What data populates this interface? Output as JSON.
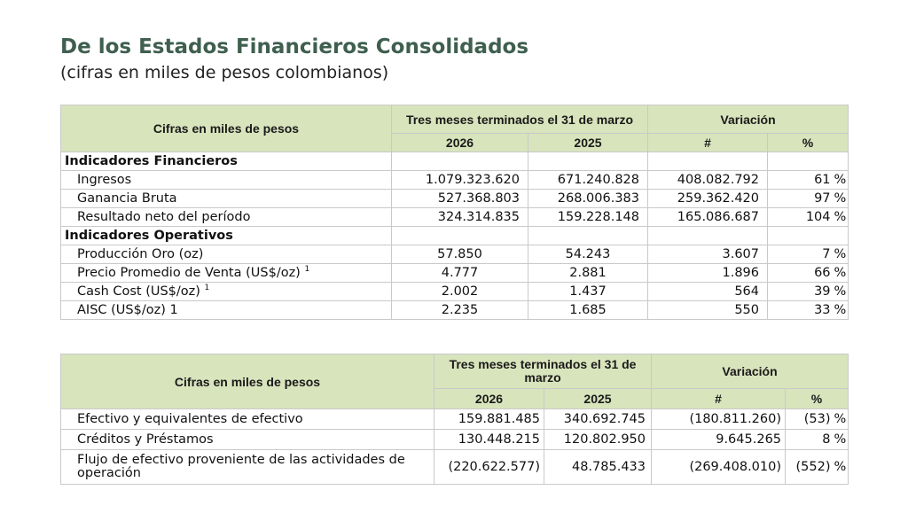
{
  "title": "De los Estados Financieros Consolidados",
  "subtitle": "(cifras en miles de pesos colombianos)",
  "table1": {
    "header_label": "Cifras en miles de pesos",
    "period_header": "Tres meses terminados el 31 de marzo",
    "variation_header": "Variación",
    "year1": "2026",
    "year2": "2025",
    "num_header": "#",
    "pct_header": "%",
    "section_financial": "Indicadores Financieros",
    "section_operational": "Indicadores Operativos",
    "rows_financial": [
      {
        "label": "Ingresos",
        "v2026": "1.079.323.620",
        "v2025": "671.240.828",
        "var": "408.082.792",
        "pct": "61",
        "pct_sign": "%"
      },
      {
        "label": "Ganancia Bruta",
        "v2026": "527.368.803",
        "v2025": "268.006.383",
        "var": "259.362.420",
        "pct": "97",
        "pct_sign": "%"
      },
      {
        "label": "Resultado neto del período",
        "v2026": "324.314.835",
        "v2025": "159.228.148",
        "var": "165.086.687",
        "pct": "104",
        "pct_sign": "%"
      }
    ],
    "rows_operational": [
      {
        "label": "Producción Oro (oz)",
        "sup": "",
        "v2026": "57.850",
        "v2025": "54.243",
        "var": "3.607",
        "pct": "7",
        "pct_sign": "%"
      },
      {
        "label": "Precio Promedio de Venta (US$/oz)",
        "sup": "1",
        "v2026": "4.777",
        "v2025": "2.881",
        "var": "1.896",
        "pct": "66",
        "pct_sign": "%"
      },
      {
        "label": "Cash Cost (US$/oz)",
        "sup": "1",
        "v2026": "2.002",
        "v2025": "1.437",
        "var": "564",
        "pct": "39",
        "pct_sign": "%"
      },
      {
        "label": "AISC (US$/oz) 1",
        "sup": "",
        "v2026": "2.235",
        "v2025": "1.685",
        "var": "550",
        "pct": "33",
        "pct_sign": "%"
      }
    ]
  },
  "table2": {
    "header_label": "Cifras en miles de pesos",
    "period_header": "Tres meses terminados el 31 de marzo",
    "variation_header": "Variación",
    "year1": "2026",
    "year2": "2025",
    "num_header": "#",
    "pct_header": "%",
    "rows": [
      {
        "label": "Efectivo y equivalentes de efectivo",
        "v2026": "159.881.485",
        "v2025": "340.692.745",
        "var": "(180.811.260)",
        "pct": "(53)",
        "pct_sign": "%"
      },
      {
        "label": "Créditos y Préstamos",
        "v2026": "130.448.215",
        "v2025": "120.802.950",
        "var": "9.645.265",
        "pct": "8",
        "pct_sign": "%"
      },
      {
        "label": "Flujo de efectivo proveniente de las actividades de operación",
        "v2026": "(220.622.577)",
        "v2025": "48.785.433",
        "var": "(269.408.010)",
        "pct": "(552)",
        "pct_sign": "%"
      }
    ]
  }
}
